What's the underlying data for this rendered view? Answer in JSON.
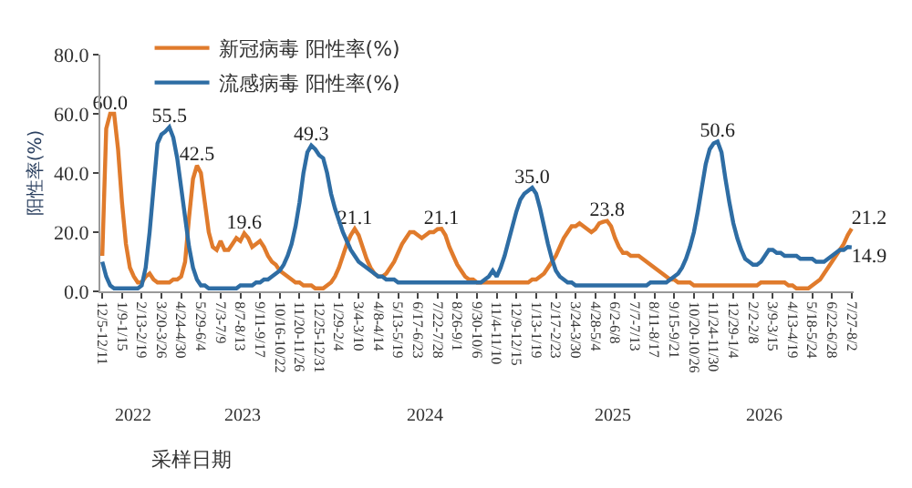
{
  "chart_data": {
    "type": "line",
    "xlabel": "采样日期",
    "ylabel": "阳性率(%)",
    "categories": [
      "12/5-12/11",
      null,
      null,
      null,
      null,
      "1/9-1/15",
      null,
      null,
      null,
      null,
      "2/13-2/19",
      null,
      null,
      null,
      null,
      "3/20-3/26",
      null,
      null,
      null,
      null,
      "4/24-4/30",
      null,
      null,
      null,
      null,
      "5/29-6/4",
      null,
      null,
      null,
      null,
      "7/3-7/9",
      null,
      null,
      null,
      null,
      "8/7-8/13",
      null,
      null,
      null,
      null,
      "9/11-9/17",
      null,
      null,
      null,
      null,
      "10/16-10/22",
      null,
      null,
      null,
      null,
      "11/20-11/26",
      null,
      null,
      null,
      null,
      "12/25-12/31",
      null,
      null,
      null,
      null,
      "1/29-2/4",
      null,
      null,
      null,
      null,
      "3/4-3/10",
      null,
      null,
      null,
      null,
      "4/8-4/14",
      null,
      null,
      null,
      null,
      "5/13-5/19",
      null,
      null,
      null,
      null,
      "6/17-6/23",
      null,
      null,
      null,
      null,
      "7/22-7/28",
      null,
      null,
      null,
      null,
      "8/26-9/1",
      null,
      null,
      null,
      null,
      "9/30-10/6",
      null,
      null,
      null,
      null,
      "11/4-11/10",
      null,
      null,
      null,
      null,
      "12/9-12/15",
      null,
      null,
      null,
      null,
      "1/13-1/19",
      null,
      null,
      null,
      null,
      "2/17-2/23",
      null,
      null,
      null,
      null,
      "3/24-3/30",
      null,
      null,
      null,
      null,
      "4/28-5/4",
      null,
      null,
      null,
      null,
      "6/2-6/8",
      null,
      null,
      null,
      null,
      "7/7-7/13",
      null,
      null,
      null,
      null,
      "8/11-8/17",
      null,
      null,
      null,
      null,
      "9/15-9/21",
      null,
      null,
      null,
      null,
      "10/20-10/26",
      null,
      null,
      null,
      null,
      "11/24-11/30",
      null,
      null,
      null,
      null,
      "12/29-1/4",
      null,
      null,
      null,
      null,
      "2/2-2/8",
      null,
      null,
      null,
      null,
      "3/9-3/15",
      null,
      null,
      null,
      null,
      "4/13-4/19",
      null,
      null,
      null,
      null,
      "5/18-5/24",
      null,
      null,
      null,
      null,
      "6/22-6/28",
      null,
      null,
      null,
      null,
      "7/27-8/2"
    ],
    "series": [
      {
        "name": "新冠病毒 阳性率(%)",
        "color": "#e07b2c",
        "values": [
          12,
          55,
          60.0,
          60,
          48,
          30,
          16,
          8,
          5,
          3,
          3,
          5,
          6,
          4,
          3,
          3,
          3,
          3,
          4,
          4,
          5,
          10,
          25,
          38,
          42.5,
          40,
          30,
          20,
          15,
          14,
          17,
          14,
          14,
          16,
          18,
          17,
          19.6,
          18,
          15,
          16,
          17,
          15,
          12,
          10,
          9,
          7,
          6,
          5,
          4,
          3,
          3,
          2,
          2,
          2,
          1,
          1,
          1,
          2,
          3,
          5,
          8,
          12,
          16,
          19,
          21.1,
          19,
          15,
          11,
          8,
          6,
          5,
          5,
          6,
          8,
          10,
          13,
          16,
          18,
          20,
          20,
          19,
          18,
          19,
          20,
          20,
          21,
          21.1,
          19,
          15,
          12,
          9,
          7,
          5,
          4,
          4,
          3,
          3,
          3,
          3,
          3,
          3,
          3,
          3,
          3,
          3,
          3,
          3,
          3,
          3,
          4,
          4,
          5,
          6,
          8,
          10,
          12,
          15,
          18,
          20,
          22,
          22,
          23,
          22,
          21,
          20,
          21,
          23,
          23.5,
          23.8,
          22,
          18,
          15,
          13,
          13,
          12,
          12,
          12,
          11,
          10,
          9,
          8,
          7,
          6,
          5,
          4,
          4,
          3,
          3,
          3,
          3,
          2,
          2,
          2,
          2,
          2,
          2,
          2,
          2,
          2,
          2,
          2,
          2,
          2,
          2,
          2,
          2,
          2,
          3,
          3,
          3,
          3,
          3,
          3,
          3,
          2,
          2,
          1,
          1,
          1,
          1,
          2,
          3,
          4,
          6,
          8,
          10,
          12,
          14,
          16,
          19,
          21.2
        ],
        "value_labels": [
          null,
          null,
          "60.0",
          null,
          null,
          null,
          null,
          null,
          null,
          null,
          null,
          null,
          null,
          null,
          null,
          null,
          null,
          null,
          null,
          null,
          null,
          null,
          null,
          null,
          "42.5",
          null,
          null,
          null,
          null,
          null,
          null,
          null,
          null,
          null,
          null,
          null,
          "19.6",
          null,
          null,
          null,
          null,
          null,
          null,
          null,
          null,
          null,
          null,
          null,
          null,
          null,
          null,
          null,
          null,
          null,
          null,
          null,
          null,
          null,
          null,
          null,
          null,
          null,
          null,
          null,
          "21.1",
          null,
          null,
          null,
          null,
          null,
          null,
          null,
          null,
          null,
          null,
          null,
          null,
          null,
          null,
          null,
          null,
          null,
          null,
          null,
          null,
          null,
          "21.1",
          null,
          null,
          null,
          null,
          null,
          null,
          null,
          null,
          null,
          null,
          null,
          null,
          null,
          null,
          null,
          null,
          null,
          null,
          null,
          null,
          null,
          null,
          null,
          null,
          null,
          null,
          null,
          null,
          null,
          null,
          null,
          null,
          null,
          null,
          null,
          null,
          null,
          null,
          null,
          null,
          null,
          "23.8",
          null,
          null,
          null,
          null,
          null,
          null,
          null,
          null,
          null,
          null,
          null,
          null,
          null,
          null,
          null,
          null,
          null,
          null,
          null,
          null,
          null,
          null,
          null,
          null,
          null,
          null,
          null,
          null,
          null,
          null,
          null,
          null,
          null,
          null,
          null,
          null,
          null,
          null,
          null,
          null,
          null,
          null,
          null,
          null,
          null,
          null,
          null,
          null,
          null,
          null,
          null,
          null,
          null,
          null,
          null,
          null,
          null,
          null,
          null,
          null,
          null,
          "21.2"
        ]
      },
      {
        "name": "流感病毒 阳性率(%)",
        "color": "#2e6da4",
        "values": [
          10,
          5,
          2,
          1,
          1,
          1,
          1,
          1,
          1,
          1,
          2,
          8,
          20,
          35,
          50,
          53,
          54,
          55.5,
          52,
          45,
          35,
          25,
          15,
          8,
          4,
          2,
          2,
          1,
          1,
          1,
          1,
          1,
          1,
          1,
          1,
          2,
          2,
          2,
          2,
          3,
          3,
          4,
          4,
          5,
          6,
          7,
          9,
          12,
          16,
          22,
          30,
          40,
          47,
          49.3,
          48,
          46,
          45,
          40,
          33,
          28,
          24,
          20,
          17,
          14,
          12,
          10,
          9,
          8,
          7,
          6,
          5,
          5,
          4,
          4,
          4,
          3,
          3,
          3,
          3,
          3,
          3,
          3,
          3,
          3,
          3,
          3,
          3,
          3,
          3,
          3,
          3,
          3,
          3,
          3,
          3,
          3,
          3,
          4,
          5,
          7,
          5,
          8,
          12,
          17,
          22,
          27,
          31,
          33,
          34,
          35.0,
          33,
          28,
          22,
          16,
          11,
          7,
          5,
          4,
          3,
          3,
          2,
          2,
          2,
          2,
          2,
          2,
          2,
          2,
          2,
          2,
          2,
          2,
          2,
          2,
          2,
          2,
          2,
          2,
          2,
          3,
          3,
          3,
          3,
          3,
          4,
          5,
          6,
          8,
          11,
          15,
          20,
          27,
          35,
          43,
          48,
          50,
          50.6,
          47,
          38,
          30,
          23,
          18,
          14,
          11,
          10,
          9,
          9,
          10,
          12,
          14,
          14,
          13,
          13,
          12,
          12,
          12,
          12,
          11,
          11,
          11,
          11,
          10,
          10,
          10,
          11,
          12,
          13,
          14,
          14,
          15,
          14.9
        ],
        "value_labels": [
          null,
          null,
          null,
          null,
          null,
          null,
          null,
          null,
          null,
          null,
          null,
          null,
          null,
          null,
          null,
          null,
          null,
          "55.5",
          null,
          null,
          null,
          null,
          null,
          null,
          null,
          null,
          null,
          null,
          null,
          null,
          null,
          null,
          null,
          null,
          null,
          null,
          null,
          null,
          null,
          null,
          null,
          null,
          null,
          null,
          null,
          null,
          null,
          null,
          null,
          null,
          null,
          null,
          null,
          "49.3",
          null,
          null,
          null,
          null,
          null,
          null,
          null,
          null,
          null,
          null,
          null,
          null,
          null,
          null,
          null,
          null,
          null,
          null,
          null,
          null,
          null,
          null,
          null,
          null,
          null,
          null,
          null,
          null,
          null,
          null,
          null,
          null,
          null,
          null,
          null,
          null,
          null,
          null,
          null,
          null,
          null,
          null,
          null,
          null,
          null,
          null,
          null,
          null,
          null,
          null,
          null,
          null,
          null,
          null,
          null,
          "35.0",
          null,
          null,
          null,
          null,
          null,
          null,
          null,
          null,
          null,
          null,
          null,
          null,
          null,
          null,
          null,
          null,
          null,
          null,
          null,
          null,
          null,
          null,
          null,
          null,
          null,
          null,
          null,
          null,
          null,
          null,
          null,
          null,
          null,
          null,
          null,
          null,
          null,
          null,
          null,
          null,
          null,
          null,
          null,
          null,
          null,
          null,
          "50.6",
          null,
          null,
          null,
          null,
          null,
          null,
          null,
          null,
          null,
          null,
          null,
          null,
          null,
          null,
          null,
          null,
          null,
          null,
          null,
          null,
          null,
          null,
          null,
          null,
          null,
          null,
          null,
          null,
          null,
          null,
          null,
          null,
          null,
          "14.9"
        ]
      }
    ],
    "ylim": [
      0,
      80
    ],
    "yticks": [
      {
        "value": 0,
        "label": "0.0"
      },
      {
        "value": 20,
        "label": "20.0"
      },
      {
        "value": 40,
        "label": "40.0"
      },
      {
        "value": 60,
        "label": "60.0"
      },
      {
        "value": 80,
        "label": "80.0"
      }
    ],
    "annotations": [
      "2022",
      "2023",
      "2024",
      "2025",
      "2026"
    ],
    "legend": "top",
    "grid": false,
    "marker": "none",
    "line_style": "solid"
  }
}
